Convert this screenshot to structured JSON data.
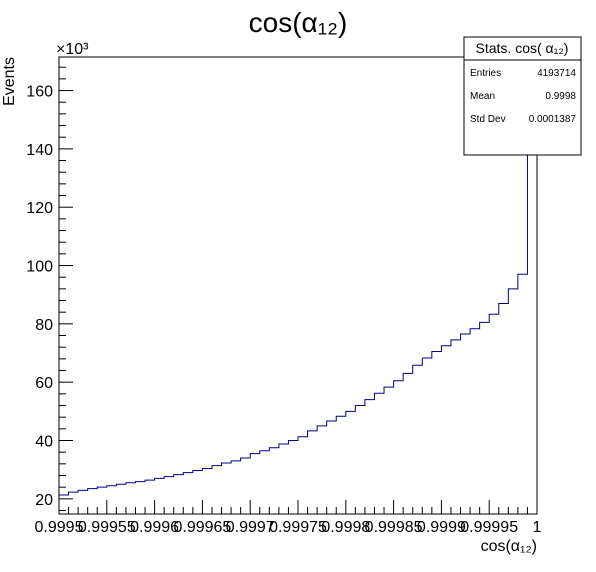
{
  "chart_data": {
    "type": "histogram",
    "title": "cos(α₁₂)",
    "xlabel": "cos(α₁₂)",
    "ylabel": "Events",
    "y_multiplier_label": "×10³",
    "xlim": [
      0.9995,
      1.0
    ],
    "ylim": [
      14.8,
      171.5
    ],
    "x_ticks": [
      0.9995,
      0.99955,
      0.9996,
      0.99965,
      0.9997,
      0.99975,
      0.9998,
      0.99985,
      0.9999,
      0.99995,
      1.0
    ],
    "x_tick_labels": [
      "0.9995",
      "0.99955",
      "0.9996",
      "0.99965",
      "0.9997",
      "0.99975",
      "0.9998",
      "0.99985",
      "0.9999",
      "0.99995",
      "1"
    ],
    "y_ticks": [
      20,
      40,
      60,
      80,
      100,
      120,
      140,
      160
    ],
    "y_tick_labels": [
      "20",
      "40",
      "60",
      "80",
      "100",
      "120",
      "140",
      "160"
    ],
    "bin_width": 1e-05,
    "x_start": 0.9995,
    "values": [
      21.3,
      22.3,
      22.9,
      23.5,
      24.0,
      24.5,
      25.0,
      25.5,
      25.9,
      26.4,
      27.0,
      27.6,
      28.3,
      29.0,
      29.7,
      30.4,
      31.4,
      32.3,
      33.0,
      34.0,
      35.5,
      36.5,
      37.5,
      38.8,
      40.0,
      41.3,
      43.3,
      45.0,
      46.7,
      48.3,
      50.0,
      52.0,
      54.0,
      56.2,
      58.3,
      60.5,
      63.0,
      65.8,
      68.3,
      70.5,
      72.5,
      74.5,
      76.5,
      78.3,
      80.5,
      83.3,
      87.0,
      92.0,
      97.0,
      171.5
    ],
    "line_color": "#000080",
    "stats": {
      "title": "Stats. cos( α₁₂)",
      "rows": [
        {
          "label": "Entries",
          "value": "4193714"
        },
        {
          "label": "Mean",
          "value": "0.9998"
        },
        {
          "label": "Std Dev",
          "value": "0.0001387"
        }
      ]
    }
  }
}
